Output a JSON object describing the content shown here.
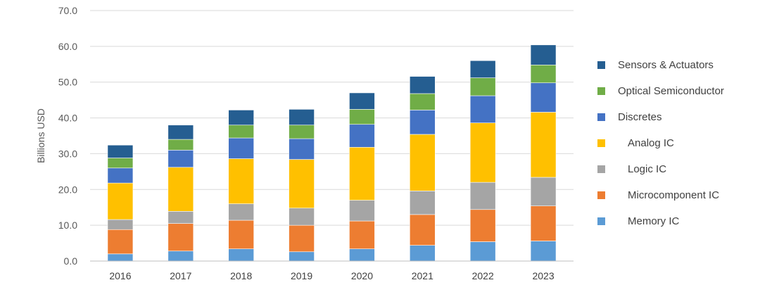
{
  "chart_data": {
    "type": "bar",
    "stacked": true,
    "title": "",
    "xlabel": "",
    "ylabel": "Billions USD",
    "ylim": [
      0,
      70
    ],
    "yticks": [
      0,
      10,
      20,
      30,
      40,
      50,
      60,
      70
    ],
    "ytick_labels": [
      "0.0",
      "10.0",
      "20.0",
      "30.0",
      "40.0",
      "50.0",
      "60.0",
      "70.0"
    ],
    "grid": true,
    "legend_position": "right",
    "categories": [
      "2016",
      "2017",
      "2018",
      "2019",
      "2020",
      "2021",
      "2022",
      "2023"
    ],
    "series": [
      {
        "name": "Memory IC",
        "color": "#5B9BD5",
        "values": [
          2.0,
          2.8,
          3.4,
          2.6,
          3.4,
          4.4,
          5.4,
          5.6
        ]
      },
      {
        "name": "Microcomponent IC",
        "color": "#ED7D31",
        "values": [
          6.8,
          7.7,
          8.0,
          7.4,
          7.8,
          8.6,
          9.0,
          9.8
        ]
      },
      {
        "name": "Logic IC",
        "color": "#A5A5A5",
        "values": [
          2.8,
          3.4,
          4.6,
          4.8,
          5.8,
          6.6,
          7.6,
          8.0
        ]
      },
      {
        "name": "Analog IC",
        "color": "#FFC000",
        "values": [
          10.2,
          12.3,
          12.6,
          13.6,
          14.8,
          15.8,
          16.6,
          18.2
        ]
      },
      {
        "name": "Discretes",
        "color": "#4472C4",
        "values": [
          4.2,
          4.8,
          5.8,
          5.8,
          6.4,
          6.8,
          7.6,
          8.2
        ]
      },
      {
        "name": "Optical Semiconductor",
        "color": "#70AD47",
        "values": [
          2.8,
          3.0,
          3.6,
          3.8,
          4.2,
          4.6,
          5.0,
          5.0
        ]
      },
      {
        "name": "Sensors & Actuators",
        "color": "#255E91",
        "values": [
          3.6,
          4.0,
          4.2,
          4.4,
          4.6,
          4.8,
          4.8,
          5.6
        ]
      }
    ],
    "legend_order": [
      "Sensors & Actuators",
      "Optical Semiconductor",
      "Discretes",
      "Analog IC",
      "Logic IC",
      "Microcomponent IC",
      "Memory IC"
    ]
  }
}
